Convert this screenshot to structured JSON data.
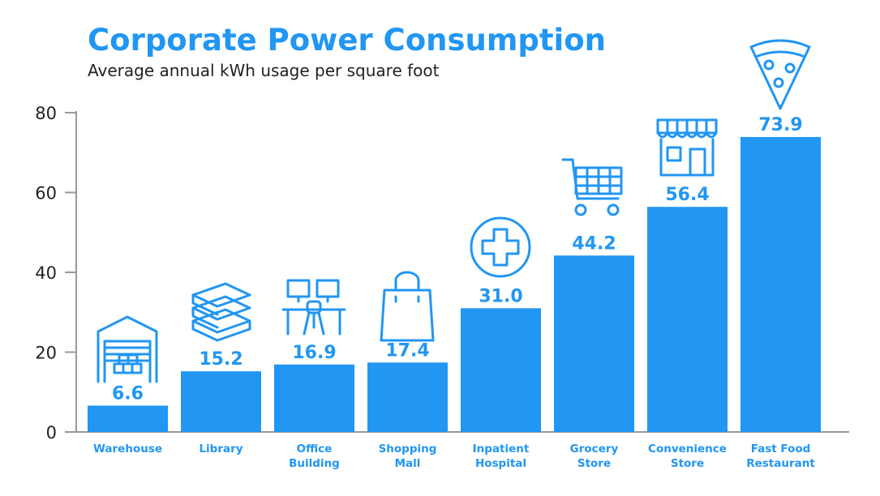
{
  "chart_data": {
    "type": "bar",
    "title": "Corporate Power Consumption",
    "subtitle": "Average annual kWh usage per square foot",
    "xlabel": "",
    "ylabel": "",
    "ylim": [
      0,
      80
    ],
    "yticks": [
      0,
      20,
      40,
      60,
      80
    ],
    "grid": false,
    "categories": [
      "Warehouse",
      "Library",
      "Office Building",
      "Shopping Mall",
      "Inpatient Hospital",
      "Grocery Store",
      "Convenience Store",
      "Fast Food Restaurant"
    ],
    "category_lines": [
      [
        "Warehouse"
      ],
      [
        "Library"
      ],
      [
        "Office",
        "Building"
      ],
      [
        "Shopping",
        "Mall"
      ],
      [
        "Inpatient",
        "Hospital"
      ],
      [
        "Grocery",
        "Store"
      ],
      [
        "Convenience",
        "Store"
      ],
      [
        "Fast Food",
        "Restaurant"
      ]
    ],
    "values": [
      6.6,
      15.2,
      16.9,
      17.4,
      31.0,
      44.2,
      56.4,
      73.9
    ],
    "value_labels": [
      "6.6",
      "15.2",
      "16.9",
      "17.4",
      "31.0",
      "44.2",
      "56.4",
      "73.9"
    ],
    "icons": [
      "warehouse-icon",
      "books-icon",
      "office-desk-icon",
      "shopping-bag-icon",
      "hospital-cross-icon",
      "shopping-cart-icon",
      "storefront-icon",
      "pizza-slice-icon"
    ],
    "colors": {
      "accent": "#2196f3",
      "axis": "#999999",
      "text": "#222222"
    }
  }
}
